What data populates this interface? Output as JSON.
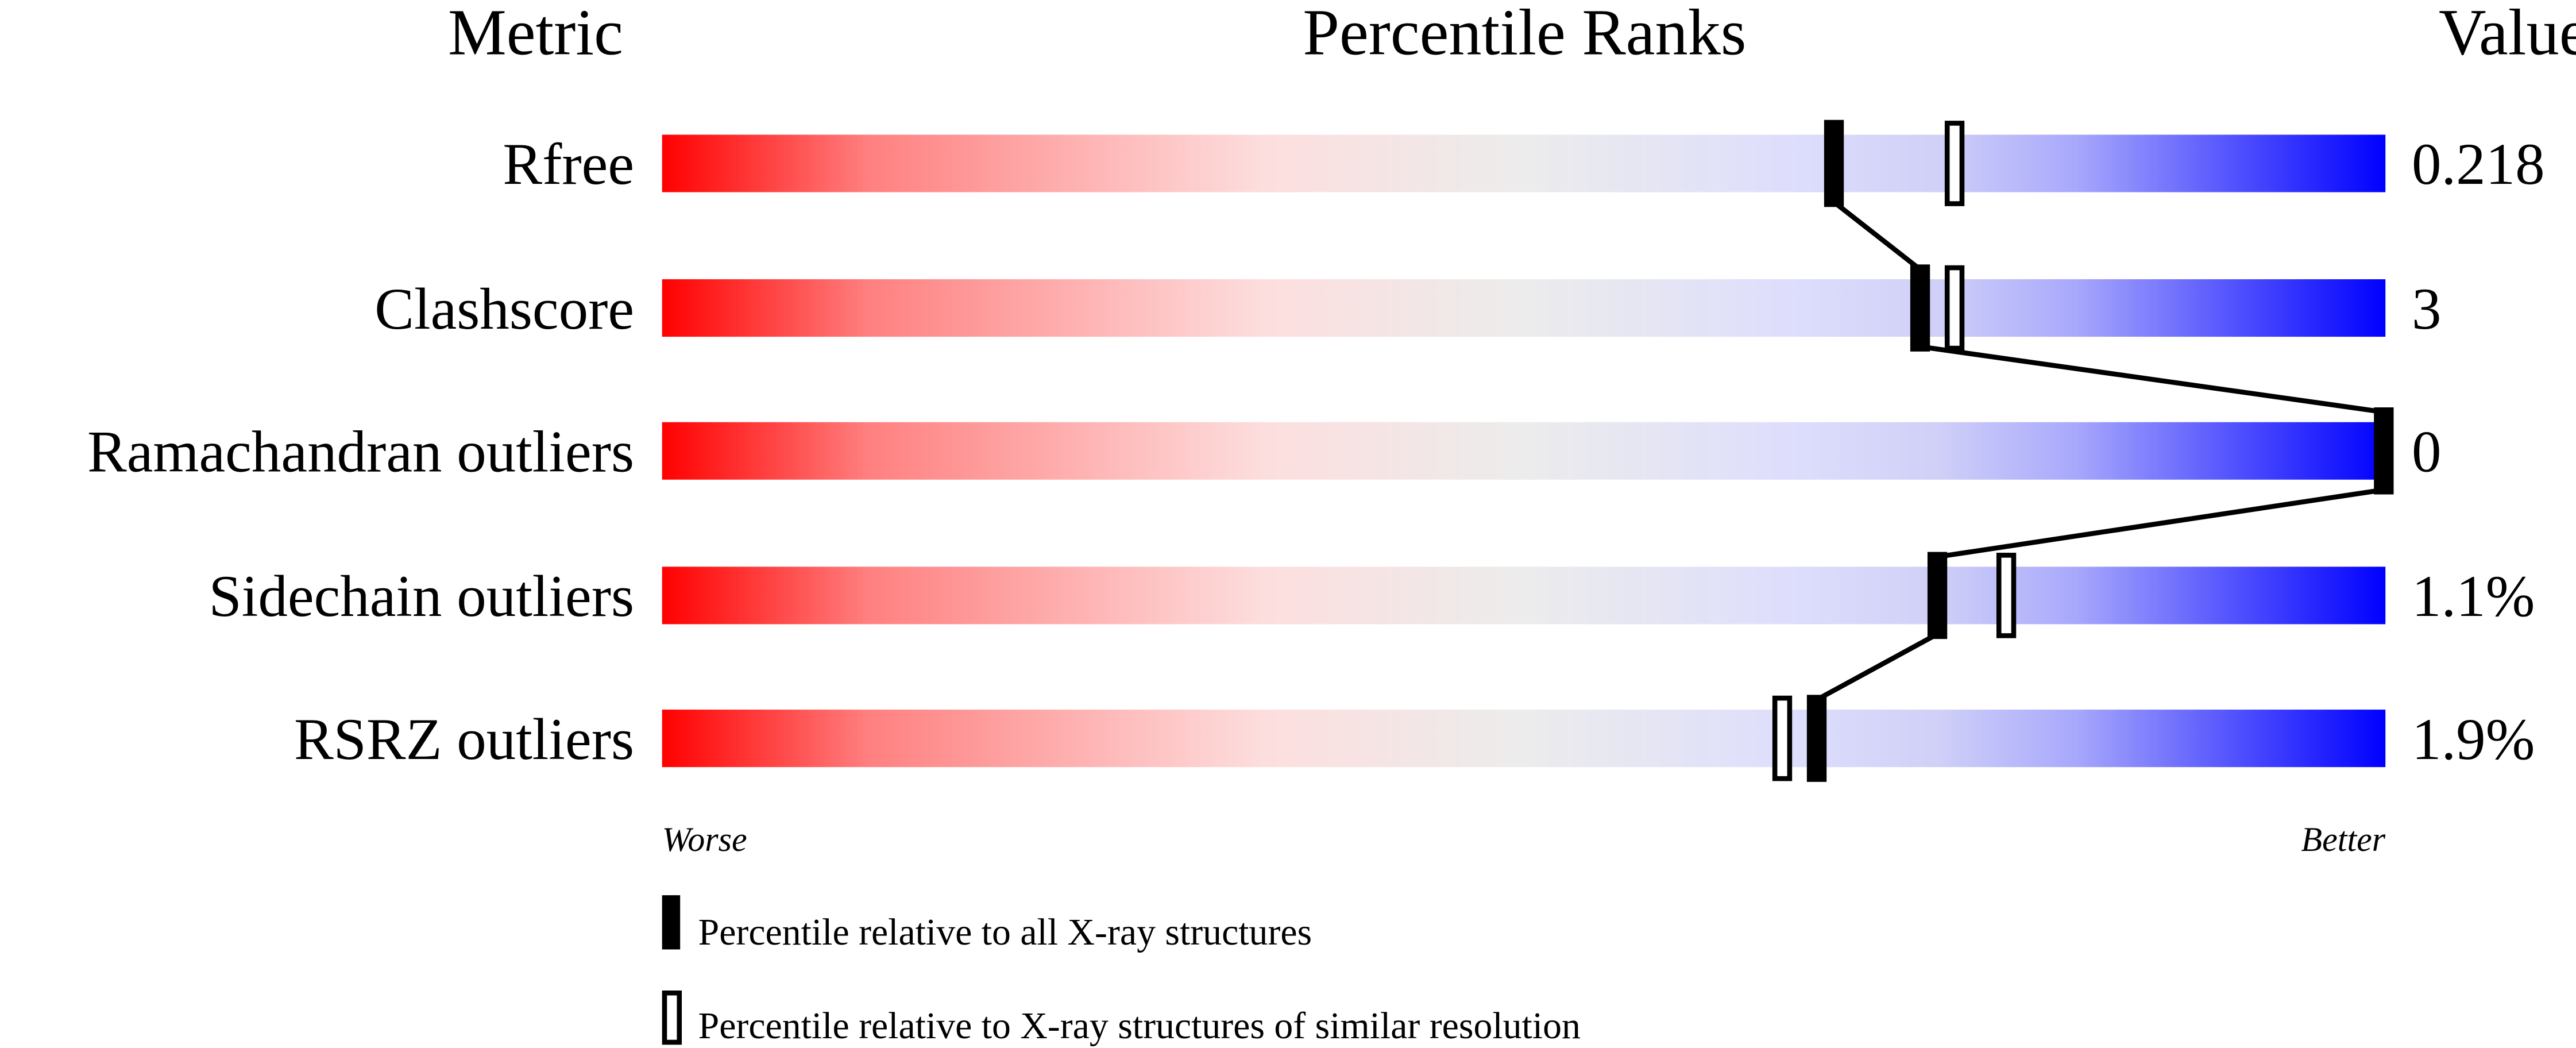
{
  "chart_data": {
    "type": "percentile-bar",
    "headers": {
      "metric": "Metric",
      "ranks": "Percentile Ranks",
      "value": "Value"
    },
    "xlim": [
      0,
      100
    ],
    "metrics": [
      {
        "name": "Rfree",
        "value": "0.218",
        "percentile_all": 68,
        "percentile_similar": 75
      },
      {
        "name": "Clashscore",
        "value": "3",
        "percentile_all": 73,
        "percentile_similar": 75
      },
      {
        "name": "Ramachandran outliers",
        "value": "0",
        "percentile_all": 100,
        "percentile_similar": 100
      },
      {
        "name": "Sidechain outliers",
        "value": "1.1%",
        "percentile_all": 74,
        "percentile_similar": 78
      },
      {
        "name": "RSRZ outliers",
        "value": "1.9%",
        "percentile_all": 67,
        "percentile_similar": 65
      }
    ],
    "axis_left_label": "Worse",
    "axis_right_label": "Better",
    "legend": [
      {
        "marker": "filled",
        "label": "Percentile relative to all X-ray structures"
      },
      {
        "marker": "open",
        "label": "Percentile relative to X-ray structures of similar resolution"
      }
    ],
    "gradient_colors": [
      "#ff0000",
      "#ff8080",
      "#fddede",
      "#ececec",
      "#dedefc",
      "#d0d0f8",
      "#a8a8fc",
      "#0000ff"
    ]
  }
}
